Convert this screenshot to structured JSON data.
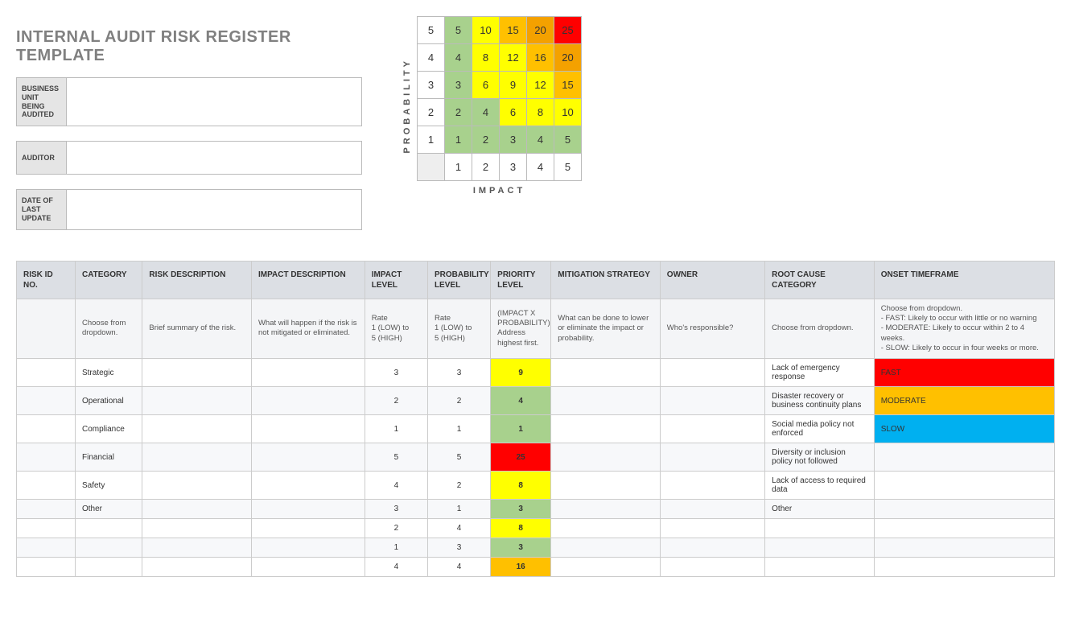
{
  "title": "INTERNAL AUDIT RISK REGISTER TEMPLATE",
  "meta_fields": [
    {
      "label": "BUSINESS UNIT BEING AUDITED",
      "value": ""
    },
    {
      "label": "AUDITOR",
      "value": ""
    },
    {
      "label": "DATE OF LAST UPDATE",
      "value": ""
    }
  ],
  "matrix": {
    "y_axis_label": "PROBABILITY",
    "x_axis_label": "IMPACT",
    "row_headers": [
      "5",
      "4",
      "3",
      "2",
      "1"
    ],
    "col_headers": [
      "1",
      "2",
      "3",
      "4",
      "5"
    ],
    "cells": [
      [
        {
          "v": "5",
          "bg": "#a8d18d"
        },
        {
          "v": "10",
          "bg": "#ffff00"
        },
        {
          "v": "15",
          "bg": "#ffc000"
        },
        {
          "v": "20",
          "bg": "#f4a100"
        },
        {
          "v": "25",
          "bg": "#ff0000"
        }
      ],
      [
        {
          "v": "4",
          "bg": "#a8d18d"
        },
        {
          "v": "8",
          "bg": "#ffff00"
        },
        {
          "v": "12",
          "bg": "#ffff00"
        },
        {
          "v": "16",
          "bg": "#ffc000"
        },
        {
          "v": "20",
          "bg": "#f4a100"
        }
      ],
      [
        {
          "v": "3",
          "bg": "#a8d18d"
        },
        {
          "v": "6",
          "bg": "#ffff00"
        },
        {
          "v": "9",
          "bg": "#ffff00"
        },
        {
          "v": "12",
          "bg": "#ffff00"
        },
        {
          "v": "15",
          "bg": "#ffc000"
        }
      ],
      [
        {
          "v": "2",
          "bg": "#a8d18d"
        },
        {
          "v": "4",
          "bg": "#a8d18d"
        },
        {
          "v": "6",
          "bg": "#ffff00"
        },
        {
          "v": "8",
          "bg": "#ffff00"
        },
        {
          "v": "10",
          "bg": "#ffff00"
        }
      ],
      [
        {
          "v": "1",
          "bg": "#a8d18d"
        },
        {
          "v": "2",
          "bg": "#a8d18d"
        },
        {
          "v": "3",
          "bg": "#a8d18d"
        },
        {
          "v": "4",
          "bg": "#a8d18d"
        },
        {
          "v": "5",
          "bg": "#a8d18d"
        }
      ]
    ]
  },
  "columns": [
    {
      "label": "RISK ID NO.",
      "hint": ""
    },
    {
      "label": "CATEGORY",
      "hint": "Choose from dropdown."
    },
    {
      "label": "RISK DESCRIPTION",
      "hint": "Brief summary of the risk."
    },
    {
      "label": "IMPACT DESCRIPTION",
      "hint": "What will happen if the risk is not mitigated or eliminated."
    },
    {
      "label": "IMPACT LEVEL",
      "hint": "Rate\n1 (LOW) to\n5 (HIGH)"
    },
    {
      "label": "PROBABILITY LEVEL",
      "hint": "Rate\n1 (LOW) to\n5 (HIGH)"
    },
    {
      "label": "PRIORITY LEVEL",
      "hint": "(IMPACT X PROBABILITY)\nAddress highest first."
    },
    {
      "label": "MITIGATION STRATEGY",
      "hint": "What can be done to lower or eliminate the impact or probability."
    },
    {
      "label": "OWNER",
      "hint": "Who's responsible?"
    },
    {
      "label": "ROOT CAUSE CATEGORY",
      "hint": "Choose from dropdown."
    },
    {
      "label": "ONSET TIMEFRAME",
      "hint": "Choose from dropdown.\n- FAST: Likely to occur with little or no warning\n- MODERATE: Likely to occur within 2 to 4 weeks.\n- SLOW: Likely to occur in four weeks or more."
    }
  ],
  "rows": [
    {
      "risk_id": "",
      "category": "Strategic",
      "risk_desc": "",
      "impact_desc": "",
      "impact": "3",
      "prob": "3",
      "priority": {
        "v": "9",
        "bg": "#ffff00"
      },
      "mit": "",
      "owner": "",
      "root": "Lack of emergency response",
      "onset": {
        "v": "FAST",
        "bg": "#ff0000",
        "fg": "#333"
      }
    },
    {
      "risk_id": "",
      "category": "Operational",
      "risk_desc": "",
      "impact_desc": "",
      "impact": "2",
      "prob": "2",
      "priority": {
        "v": "4",
        "bg": "#a8d18d"
      },
      "mit": "",
      "owner": "",
      "root": "Disaster recovery or business continuity plans",
      "onset": {
        "v": "MODERATE",
        "bg": "#ffc000",
        "fg": "#333"
      }
    },
    {
      "risk_id": "",
      "category": "Compliance",
      "risk_desc": "",
      "impact_desc": "",
      "impact": "1",
      "prob": "1",
      "priority": {
        "v": "1",
        "bg": "#a8d18d"
      },
      "mit": "",
      "owner": "",
      "root": "Social media policy not enforced",
      "onset": {
        "v": "SLOW",
        "bg": "#00b0f0",
        "fg": "#333"
      }
    },
    {
      "risk_id": "",
      "category": "Financial",
      "risk_desc": "",
      "impact_desc": "",
      "impact": "5",
      "prob": "5",
      "priority": {
        "v": "25",
        "bg": "#ff0000"
      },
      "mit": "",
      "owner": "",
      "root": "Diversity or inclusion policy not followed",
      "onset": {
        "v": "",
        "bg": "",
        "fg": ""
      }
    },
    {
      "risk_id": "",
      "category": "Safety",
      "risk_desc": "",
      "impact_desc": "",
      "impact": "4",
      "prob": "2",
      "priority": {
        "v": "8",
        "bg": "#ffff00"
      },
      "mit": "",
      "owner": "",
      "root": "Lack of access to required data",
      "onset": {
        "v": "",
        "bg": "",
        "fg": ""
      }
    },
    {
      "risk_id": "",
      "category": "Other",
      "risk_desc": "",
      "impact_desc": "",
      "impact": "3",
      "prob": "1",
      "priority": {
        "v": "3",
        "bg": "#a8d18d"
      },
      "mit": "",
      "owner": "",
      "root": "Other",
      "onset": {
        "v": "",
        "bg": "",
        "fg": ""
      }
    },
    {
      "risk_id": "",
      "category": "",
      "risk_desc": "",
      "impact_desc": "",
      "impact": "2",
      "prob": "4",
      "priority": {
        "v": "8",
        "bg": "#ffff00"
      },
      "mit": "",
      "owner": "",
      "root": "",
      "onset": {
        "v": "",
        "bg": "",
        "fg": ""
      }
    },
    {
      "risk_id": "",
      "category": "",
      "risk_desc": "",
      "impact_desc": "",
      "impact": "1",
      "prob": "3",
      "priority": {
        "v": "3",
        "bg": "#a8d18d"
      },
      "mit": "",
      "owner": "",
      "root": "",
      "onset": {
        "v": "",
        "bg": "",
        "fg": ""
      }
    },
    {
      "risk_id": "",
      "category": "",
      "risk_desc": "",
      "impact_desc": "",
      "impact": "4",
      "prob": "4",
      "priority": {
        "v": "16",
        "bg": "#ffc000"
      },
      "mit": "",
      "owner": "",
      "root": "",
      "onset": {
        "v": "",
        "bg": "",
        "fg": ""
      }
    }
  ]
}
